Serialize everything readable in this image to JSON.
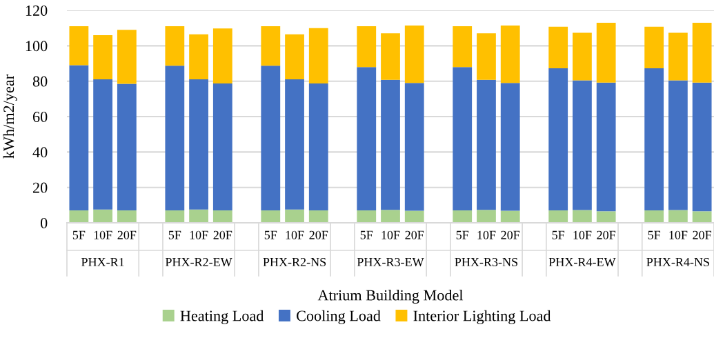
{
  "chart_data": {
    "type": "bar",
    "stacked": true,
    "xlabel": "Atrium Building Model",
    "ylabel": "kWh/m2/year",
    "categories": [
      "5F",
      "10F",
      "20F",
      null,
      "5F",
      "10F",
      "20F",
      null,
      "5F",
      "10F",
      "20F",
      null,
      "5F",
      "10F",
      "20F",
      null,
      "5F",
      "10F",
      "20F",
      null,
      "5F",
      "10F",
      "20F",
      null,
      "5F",
      "10F",
      "20F"
    ],
    "series": [
      {
        "name": "Heating Load",
        "color": "#a9d18e",
        "values": [
          7,
          7.5,
          7,
          null,
          7,
          7.5,
          7,
          null,
          7,
          7.5,
          7,
          null,
          7,
          7.3,
          6.8,
          null,
          7,
          7.3,
          6.8,
          null,
          7,
          7.2,
          6.5,
          null,
          7,
          7.2,
          6.5
        ]
      },
      {
        "name": "Cooling Load",
        "color": "#4472c4",
        "values": [
          82,
          73.5,
          71.5,
          null,
          81.7,
          73.5,
          71.7,
          null,
          81.7,
          73.5,
          71.7,
          null,
          81,
          73.4,
          72.2,
          null,
          81,
          73.4,
          72.2,
          null,
          80.3,
          73.3,
          72.7,
          null,
          80.3,
          73.3,
          72.7
        ]
      },
      {
        "name": "Interior Lighting Load",
        "color": "#ffc000",
        "values": [
          22,
          25,
          30.5,
          null,
          22.3,
          25.5,
          31.1,
          null,
          22.3,
          25.5,
          31.3,
          null,
          23,
          26.3,
          32.4,
          null,
          23,
          26.3,
          32.4,
          null,
          23.4,
          26.8,
          33.8,
          null,
          23.4,
          26.8,
          33.8
        ]
      }
    ],
    "annotations": [
      "PHX-R1",
      "PHX-R2-EW",
      "PHX-R2-NS",
      "PHX-R3-EW",
      "PHX-R3-NS",
      "PHX-R4-EW",
      "PHX-R4-NS"
    ],
    "ylim": [
      0,
      120
    ],
    "yticks": [
      0,
      20,
      40,
      60,
      80,
      100,
      120
    ],
    "grid": "y",
    "legend": "bottom"
  }
}
